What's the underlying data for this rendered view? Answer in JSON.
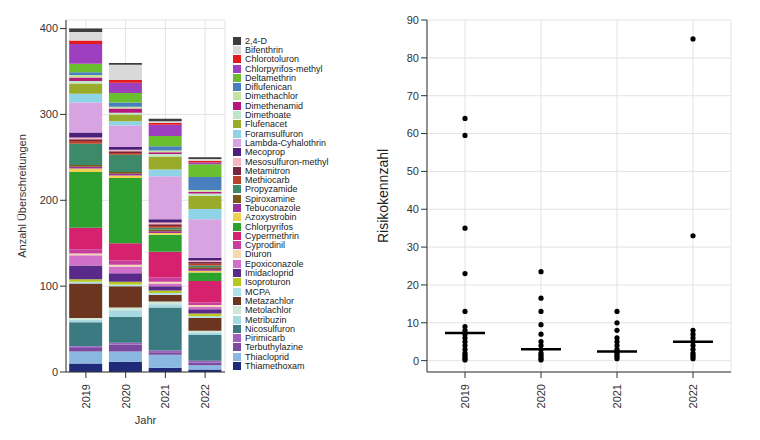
{
  "chart_data": [
    {
      "type": "bar",
      "stacked": true,
      "x_label": "Jahr",
      "y_label": "Anzahl Überschreitungen",
      "categories": [
        "2019",
        "2020",
        "2021",
        "2022"
      ],
      "ylim": [
        0,
        410
      ],
      "yticks": [
        0,
        100,
        200,
        300,
        400
      ],
      "grid": true,
      "legend": "right",
      "series": [
        {
          "name": "2,4-D",
          "color": "#3d3d3d",
          "values": [
            4,
            2,
            3,
            2
          ]
        },
        {
          "name": "Bifenthrin",
          "color": "#d9d9d9",
          "values": [
            10,
            18,
            2,
            2
          ]
        },
        {
          "name": "Chlorotoluron",
          "color": "#e41a1c",
          "values": [
            4,
            3,
            2,
            2
          ]
        },
        {
          "name": "Chlorpyrifos-methyl",
          "color": "#9e3fbf",
          "values": [
            23,
            12,
            13,
            2
          ]
        },
        {
          "name": "Deltamethrin",
          "color": "#6abf2f",
          "values": [
            10,
            11,
            12,
            15
          ]
        },
        {
          "name": "Diflufenican",
          "color": "#4a7fbf",
          "values": [
            3,
            5,
            5,
            15
          ]
        },
        {
          "name": "Dimethachlor",
          "color": "#c6e2a0",
          "values": [
            3,
            2,
            2,
            2
          ]
        },
        {
          "name": "Dimethenamid",
          "color": "#b5177a",
          "values": [
            4,
            5,
            2,
            2
          ]
        },
        {
          "name": "Dimethoate",
          "color": "#bfe6c8",
          "values": [
            3,
            2,
            3,
            3
          ]
        },
        {
          "name": "Flufenacet",
          "color": "#9aaa2a",
          "values": [
            12,
            8,
            15,
            15
          ]
        },
        {
          "name": "Foramsulfuron",
          "color": "#8fd3e6",
          "values": [
            10,
            5,
            8,
            12
          ]
        },
        {
          "name": "Lambda-Cyhalothrin",
          "color": "#d7a3e0",
          "values": [
            35,
            25,
            50,
            45
          ]
        },
        {
          "name": "Mecoprop",
          "color": "#4b1f7a",
          "values": [
            6,
            3,
            4,
            3
          ]
        },
        {
          "name": "Mesosulfuron-methyl",
          "color": "#f4b6c2",
          "values": [
            2,
            2,
            2,
            2
          ]
        },
        {
          "name": "Metamitron",
          "color": "#7a2540",
          "values": [
            2,
            2,
            2,
            2
          ]
        },
        {
          "name": "Methiocarb",
          "color": "#b8432a",
          "values": [
            3,
            2,
            2,
            2
          ]
        },
        {
          "name": "Propyzamide",
          "color": "#3c8a6a",
          "values": [
            25,
            20,
            2,
            2
          ]
        },
        {
          "name": "Spiroxamine",
          "color": "#7a5a1a",
          "values": [
            2,
            2,
            2,
            2
          ]
        },
        {
          "name": "Tebuconazole",
          "color": "#9c2fa0",
          "values": [
            2,
            2,
            2,
            2
          ]
        },
        {
          "name": "Azoxystrobin",
          "color": "#f0d050",
          "values": [
            4,
            3,
            2,
            2
          ]
        },
        {
          "name": "Chlorpyrifos",
          "color": "#2da02d",
          "values": [
            65,
            76,
            20,
            10
          ]
        },
        {
          "name": "Cypermethrin",
          "color": "#d6216f",
          "values": [
            25,
            20,
            30,
            25
          ]
        },
        {
          "name": "Cyprodinil",
          "color": "#c83e9e",
          "values": [
            5,
            5,
            5,
            3
          ]
        },
        {
          "name": "Diuron",
          "color": "#f7d9b0",
          "values": [
            2,
            2,
            2,
            2
          ]
        },
        {
          "name": "Epoxiconazole",
          "color": "#d070c8",
          "values": [
            12,
            8,
            3,
            3
          ]
        },
        {
          "name": "Imidacloprid",
          "color": "#5a2a8a",
          "values": [
            16,
            10,
            5,
            5
          ]
        },
        {
          "name": "Isoproturon",
          "color": "#b8c820",
          "values": [
            3,
            3,
            3,
            3
          ]
        },
        {
          "name": "MCPA",
          "color": "#b0e0e8",
          "values": [
            2,
            2,
            2,
            2
          ]
        },
        {
          "name": "Metazachlor",
          "color": "#6b3520",
          "values": [
            40,
            25,
            8,
            15
          ]
        },
        {
          "name": "Metolachlor",
          "color": "#cfe8d8",
          "values": [
            2,
            3,
            3,
            2
          ]
        },
        {
          "name": "Metribuzin",
          "color": "#a8d8e0",
          "values": [
            3,
            8,
            4,
            3
          ]
        },
        {
          "name": "Nicosulfuron",
          "color": "#3a7a80",
          "values": [
            28,
            30,
            50,
            30
          ]
        },
        {
          "name": "Pirimicarb",
          "color": "#a060c0",
          "values": [
            2,
            2,
            2,
            2
          ]
        },
        {
          "name": "Terbuthylazine",
          "color": "#7a4aa0",
          "values": [
            4,
            8,
            3,
            3
          ]
        },
        {
          "name": "Thiacloprid",
          "color": "#8ab8e0",
          "values": [
            14,
            12,
            15,
            5
          ]
        },
        {
          "name": "Thiamethoxam",
          "color": "#1f2a7a",
          "values": [
            10,
            12,
            5,
            3
          ]
        }
      ]
    },
    {
      "type": "scatter",
      "y_label": "Risikokennzahl",
      "categories": [
        "2019",
        "2020",
        "2021",
        "2022"
      ],
      "ylim": [
        -3,
        90
      ],
      "yticks": [
        0,
        10,
        20,
        30,
        40,
        50,
        60,
        70,
        80,
        90
      ],
      "grid": true,
      "color": "#000000",
      "points": [
        [
          64,
          59.5,
          35,
          23,
          13,
          9,
          8,
          7,
          6,
          5,
          4,
          3,
          2,
          1.5,
          1,
          0.5,
          0.2
        ],
        [
          23.5,
          16.5,
          13,
          9.5,
          7,
          5,
          4,
          3,
          2,
          1.5,
          1,
          0.5,
          0.2
        ],
        [
          13,
          10,
          8,
          6,
          5,
          4,
          3,
          2.5,
          2,
          1.5,
          1,
          0.5
        ],
        [
          85,
          33,
          8,
          7,
          6,
          5,
          4,
          3,
          2,
          1.5,
          1,
          0.5
        ]
      ],
      "medians": [
        7.3,
        3,
        2.4,
        5
      ]
    }
  ]
}
